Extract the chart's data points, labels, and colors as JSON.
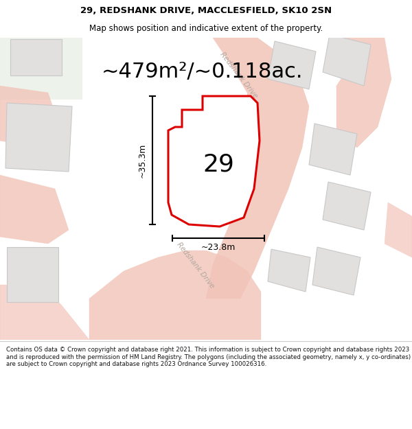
{
  "title_line1": "29, REDSHANK DRIVE, MACCLESFIELD, SK10 2SN",
  "title_line2": "Map shows position and indicative extent of the property.",
  "area_text": "~479m²/~0.118ac.",
  "plot_number": "29",
  "dim_height": "~35.3m",
  "dim_width": "~23.8m",
  "road_label_top": "Redshank Drive",
  "road_label_bottom": "Redshank Drive",
  "footer_text": "Contains OS data © Crown copyright and database right 2021. This information is subject to Crown copyright and database rights 2023 and is reproduced with the permission of HM Land Registry. The polygons (including the associated geometry, namely x, y co-ordinates) are subject to Crown copyright and database rights 2023 Ordnance Survey 100026316.",
  "map_bg": "#f2f0ee",
  "road_color": "#f2c4b8",
  "plot_fill": "#ffffff",
  "plot_edge": "#dd0000",
  "building_fill": "#e2e0de",
  "building_edge": "#c8c8c8",
  "footer_bg": "#ffffff",
  "header_bg": "#ffffff",
  "green_bg": "#edf2ea",
  "title_fontsize": 9.5,
  "subtitle_fontsize": 8.5,
  "area_fontsize": 22,
  "plot_num_fontsize": 26,
  "dim_fontsize": 9,
  "road_label_fontsize": 7.5,
  "footer_fontsize": 6.2
}
